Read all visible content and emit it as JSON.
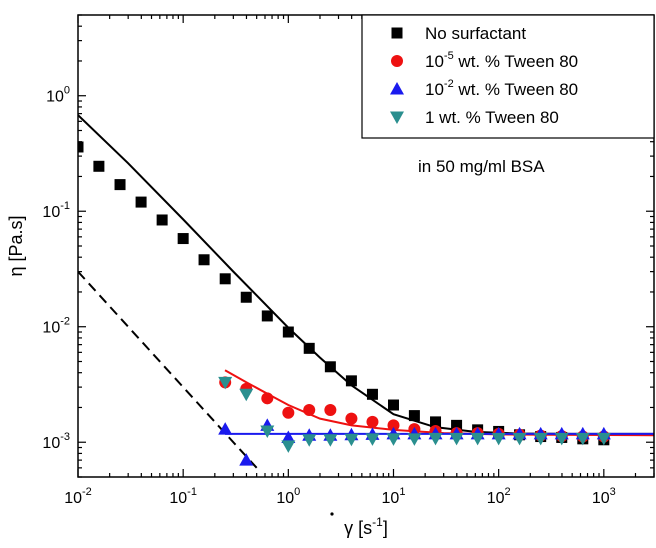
{
  "chart_data": {
    "type": "scatter",
    "x_scale": "log",
    "y_scale": "log",
    "xlim": [
      0.01,
      3000
    ],
    "ylim": [
      0.0005,
      5
    ],
    "xlabel": {
      "base": "γ",
      "open": " [s",
      "sup": "-1",
      "close": "]"
    },
    "ylabel": "η [Pa.s]",
    "x_ticks": [
      {
        "value": 0.01,
        "base": "10",
        "exp": "-2"
      },
      {
        "value": 0.1,
        "base": "10",
        "exp": "-1"
      },
      {
        "value": 1,
        "base": "10",
        "exp": "0"
      },
      {
        "value": 10,
        "base": "10",
        "exp": "1"
      },
      {
        "value": 100,
        "base": "10",
        "exp": "2"
      },
      {
        "value": 1000,
        "base": "10",
        "exp": "3"
      }
    ],
    "y_ticks": [
      {
        "value": 0.001,
        "base": "10",
        "exp": "-3"
      },
      {
        "value": 0.01,
        "base": "10",
        "exp": "-2"
      },
      {
        "value": 0.1,
        "base": "10",
        "exp": "-1"
      },
      {
        "value": 1,
        "base": "10",
        "exp": "0"
      }
    ],
    "annotation": "in 50 mg/ml BSA",
    "legend_position": "top-right",
    "series": [
      {
        "label_parts": [
          "No surfactant"
        ],
        "marker": "square",
        "color": "#000000",
        "points": [
          [
            0.01,
            0.36
          ],
          [
            0.0158,
            0.245
          ],
          [
            0.0251,
            0.17
          ],
          [
            0.0398,
            0.12
          ],
          [
            0.0631,
            0.084
          ],
          [
            0.1,
            0.058
          ],
          [
            0.158,
            0.038
          ],
          [
            0.251,
            0.026
          ],
          [
            0.398,
            0.018
          ],
          [
            0.631,
            0.0124
          ],
          [
            1,
            0.009
          ],
          [
            1.58,
            0.0065
          ],
          [
            2.51,
            0.0045
          ],
          [
            3.98,
            0.0034
          ],
          [
            6.31,
            0.0026
          ],
          [
            10,
            0.0021
          ],
          [
            15.8,
            0.0017
          ],
          [
            25.1,
            0.0015
          ],
          [
            39.8,
            0.0014
          ],
          [
            63.1,
            0.00128
          ],
          [
            100,
            0.00124
          ],
          [
            158,
            0.00116
          ],
          [
            251,
            0.00112
          ],
          [
            398,
            0.0011
          ],
          [
            631,
            0.00107
          ],
          [
            1000,
            0.00105
          ]
        ]
      },
      {
        "label_parts": [
          "10",
          "-5",
          " wt. % Tween 80"
        ],
        "marker": "circle",
        "color": "#ee1111",
        "points": [
          [
            0.251,
            0.0033
          ],
          [
            0.398,
            0.0029
          ],
          [
            0.631,
            0.0024
          ],
          [
            1,
            0.0018
          ],
          [
            1.58,
            0.0019
          ],
          [
            2.51,
            0.0019
          ],
          [
            3.98,
            0.0016
          ],
          [
            6.31,
            0.0015
          ],
          [
            10,
            0.0014
          ],
          [
            15.8,
            0.0013
          ],
          [
            25.1,
            0.00125
          ],
          [
            39.8,
            0.0012
          ],
          [
            63.1,
            0.0012
          ],
          [
            100,
            0.00118
          ],
          [
            158,
            0.00116
          ],
          [
            251,
            0.00114
          ],
          [
            398,
            0.00113
          ],
          [
            631,
            0.00112
          ],
          [
            1000,
            0.00112
          ]
        ]
      },
      {
        "label_parts": [
          "10",
          "-2",
          " wt. % Tween 80"
        ],
        "marker": "triangle-up",
        "color": "#1a1aee",
        "points": [
          [
            0.251,
            0.0013
          ],
          [
            0.398,
            0.0007
          ],
          [
            0.631,
            0.0014
          ],
          [
            1,
            0.0011
          ],
          [
            1.58,
            0.00115
          ],
          [
            2.51,
            0.00115
          ],
          [
            3.98,
            0.00116
          ],
          [
            6.31,
            0.00117
          ],
          [
            10,
            0.00118
          ],
          [
            15.8,
            0.00118
          ],
          [
            25.1,
            0.00118
          ],
          [
            39.8,
            0.00118
          ],
          [
            63.1,
            0.00118
          ],
          [
            100,
            0.00118
          ],
          [
            158,
            0.00118
          ],
          [
            251,
            0.00118
          ],
          [
            398,
            0.00118
          ],
          [
            631,
            0.00118
          ],
          [
            1000,
            0.00118
          ]
        ]
      },
      {
        "label_parts": [
          "1 wt. % Tween 80"
        ],
        "marker": "triangle-down",
        "color": "#2a8f8f",
        "points": [
          [
            0.251,
            0.0033
          ],
          [
            0.398,
            0.0026
          ],
          [
            0.631,
            0.00125
          ],
          [
            1,
            0.00093
          ],
          [
            1.58,
            0.00105
          ],
          [
            2.51,
            0.00105
          ],
          [
            3.98,
            0.00106
          ],
          [
            6.31,
            0.00107
          ],
          [
            10,
            0.00107
          ],
          [
            15.8,
            0.00107
          ],
          [
            25.1,
            0.00108
          ],
          [
            39.8,
            0.00108
          ],
          [
            63.1,
            0.00108
          ],
          [
            100,
            0.00108
          ],
          [
            158,
            0.00108
          ],
          [
            251,
            0.00108
          ],
          [
            398,
            0.00108
          ],
          [
            631,
            0.00108
          ],
          [
            1000,
            0.00108
          ]
        ]
      }
    ],
    "fit_lines": [
      {
        "color": "#000000",
        "dash": "solid",
        "points": [
          [
            0.01,
            0.68
          ],
          [
            0.03,
            0.26
          ],
          [
            0.1,
            0.085
          ],
          [
            0.3,
            0.03
          ],
          [
            1,
            0.0098
          ],
          [
            2,
            0.0054
          ],
          [
            4,
            0.0031
          ],
          [
            10,
            0.00175
          ],
          [
            25,
            0.00135
          ],
          [
            60,
            0.00123
          ],
          [
            150,
            0.00119
          ],
          [
            500,
            0.00118
          ],
          [
            3000,
            0.00118
          ]
        ]
      },
      {
        "color": "#ee1111",
        "dash": "solid",
        "points": [
          [
            0.25,
            0.0042
          ],
          [
            0.4,
            0.0033
          ],
          [
            0.7,
            0.0025
          ],
          [
            1,
            0.0021
          ],
          [
            2,
            0.0016
          ],
          [
            4,
            0.0014
          ],
          [
            10,
            0.00128
          ],
          [
            30,
            0.0012
          ],
          [
            100,
            0.00117
          ],
          [
            300,
            0.00116
          ],
          [
            3000,
            0.00115
          ]
        ]
      },
      {
        "color": "#1a1aee",
        "dash": "solid",
        "points": [
          [
            0.25,
            0.00118
          ],
          [
            3000,
            0.00118
          ]
        ]
      },
      {
        "color": "#000000",
        "dash": "dashed",
        "points": [
          [
            0.01,
            0.03
          ],
          [
            0.5,
            0.0006
          ]
        ]
      }
    ]
  }
}
